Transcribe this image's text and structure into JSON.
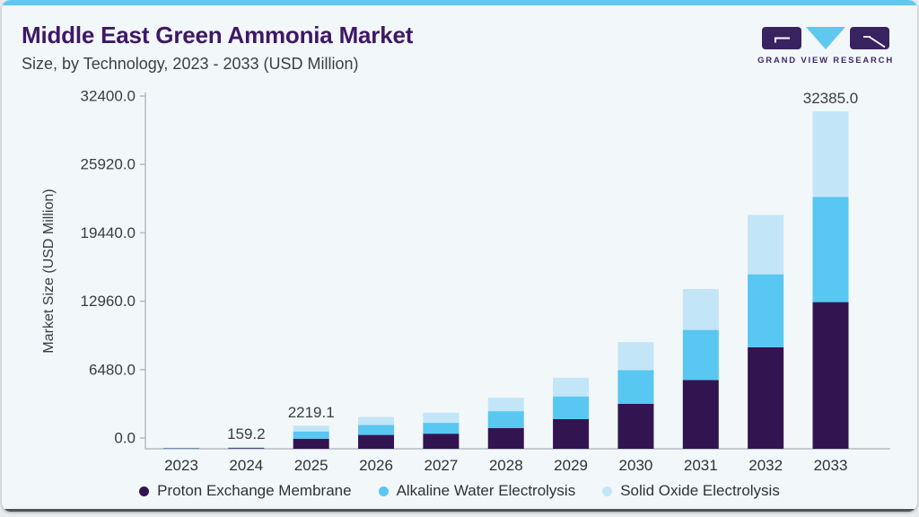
{
  "header": {
    "title": "Middle East Green Ammonia Market",
    "subtitle": "Size, by Technology, 2023 - 2033 (USD Million)",
    "logo_text": "GRAND VIEW RESEARCH"
  },
  "colors": {
    "accent_top": "#5ec8f0",
    "title_text": "#3e1866",
    "pem": "#321550",
    "alkaline": "#58c7f2",
    "solid_oxide": "#c2e6f8",
    "axis_line": "#b4bcc2",
    "axis_text": "#383d43",
    "logo_purple": "#3a2361"
  },
  "chart_data": {
    "type": "bar",
    "stacked": true,
    "title": "Middle East Green Ammonia Market Size, by Technology, 2023 - 2033 (USD Million)",
    "xlabel": "",
    "ylabel": "Market Size (USD Million)",
    "ylim": [
      0,
      32400
    ],
    "y_tick_interval": 6480,
    "y_tick_labels": [
      "0.0",
      "6480.0",
      "12960.0",
      "19440.0",
      "25920.0",
      "32400.0"
    ],
    "grid": false,
    "legend_position": "bottom",
    "categories": [
      "2023",
      "2024",
      "2025",
      "2026",
      "2027",
      "2028",
      "2029",
      "2030",
      "2031",
      "2032",
      "2033"
    ],
    "series": [
      {
        "name": "Proton Exchange Membrane",
        "color_key": "pem",
        "values": [
          44,
          69.2,
          965,
          1330,
          1450,
          2000,
          2850,
          4310,
          6610,
          9740,
          14080
        ]
      },
      {
        "name": "Alkaline Water Electrolysis",
        "color_key": "alkaline",
        "values": [
          32,
          50,
          700,
          960,
          1040,
          1610,
          2180,
          3250,
          4800,
          7010,
          10110
        ]
      },
      {
        "name": "Solid Oxide Electrolysis",
        "color_key": "solid_oxide",
        "values": [
          26,
          40,
          554.1,
          760,
          970,
          1290,
          1790,
          2680,
          3930,
          5700,
          8195
        ]
      }
    ],
    "totals": [
      102,
      159.2,
      2219.1,
      3050,
      3460,
      4900,
      6820,
      10240,
      15340,
      22450,
      32385
    ],
    "value_labels": [
      "",
      "159.2",
      "2219.1",
      "",
      "",
      "",
      "",
      "",
      "",
      "",
      "32385.0"
    ]
  }
}
